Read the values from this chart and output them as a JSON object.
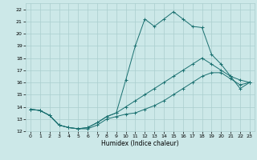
{
  "xlabel": "Humidex (Indice chaleur)",
  "bg_color": "#cce8e8",
  "grid_color": "#aacece",
  "line_color": "#1a7070",
  "xlim": [
    -0.5,
    23.5
  ],
  "ylim": [
    12,
    22.5
  ],
  "xticks": [
    0,
    1,
    2,
    3,
    4,
    5,
    6,
    7,
    8,
    9,
    10,
    11,
    12,
    13,
    14,
    15,
    16,
    17,
    18,
    19,
    20,
    21,
    22,
    23
  ],
  "yticks": [
    12,
    13,
    14,
    15,
    16,
    17,
    18,
    19,
    20,
    21,
    22
  ],
  "line1_x": [
    0,
    1,
    2,
    3,
    4,
    5,
    6,
    7,
    8,
    9,
    10,
    11,
    12,
    13,
    14,
    15,
    16,
    17,
    18,
    19,
    20,
    21,
    22,
    23
  ],
  "line1_y": [
    13.8,
    13.7,
    13.3,
    12.5,
    12.3,
    12.2,
    12.2,
    12.5,
    13.0,
    13.2,
    13.4,
    13.5,
    13.8,
    14.1,
    14.5,
    15.0,
    15.5,
    16.0,
    16.5,
    16.8,
    16.8,
    16.3,
    15.8,
    16.0
  ],
  "line2_x": [
    0,
    1,
    2,
    3,
    4,
    5,
    6,
    7,
    8,
    9,
    10,
    11,
    12,
    13,
    14,
    15,
    16,
    17,
    18,
    19,
    20,
    21,
    22,
    23
  ],
  "line2_y": [
    13.8,
    13.7,
    13.3,
    12.5,
    12.3,
    12.2,
    12.3,
    12.7,
    13.2,
    13.5,
    14.0,
    14.5,
    15.0,
    15.5,
    16.0,
    16.5,
    17.0,
    17.5,
    18.0,
    17.5,
    17.0,
    16.5,
    16.2,
    16.0
  ],
  "line3_x": [
    0,
    1,
    2,
    3,
    4,
    5,
    6,
    7,
    8,
    9,
    10,
    11,
    12,
    13,
    14,
    15,
    16,
    17,
    18,
    19,
    20,
    21,
    22,
    23
  ],
  "line3_y": [
    13.8,
    13.7,
    13.3,
    12.5,
    12.3,
    12.2,
    12.3,
    12.7,
    13.2,
    13.5,
    16.2,
    19.0,
    21.2,
    20.6,
    21.2,
    21.8,
    21.2,
    20.6,
    20.5,
    18.3,
    17.5,
    16.5,
    15.5,
    16.0
  ]
}
